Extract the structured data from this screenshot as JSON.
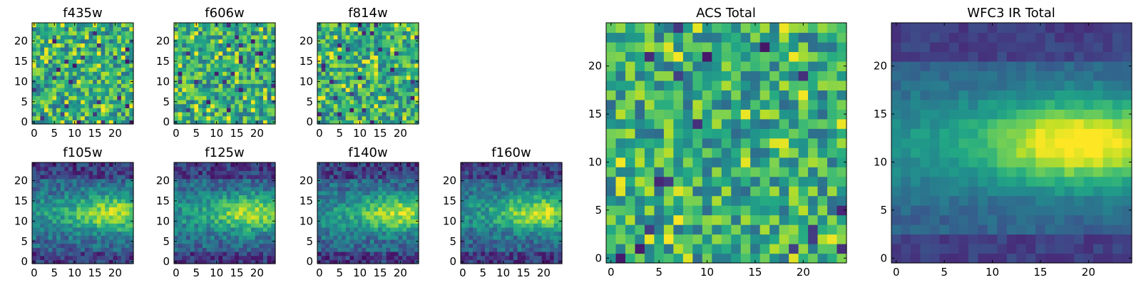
{
  "chart_data": [
    {
      "type": "heatmap",
      "id": "f435w",
      "title": "f435w",
      "colormap": "viridis",
      "grid_size": [
        25,
        25
      ],
      "texture": "noise",
      "seed": 11,
      "x_ticks": [
        0,
        5,
        10,
        15,
        20
      ],
      "y_ticks": [
        0,
        5,
        10,
        15,
        20
      ],
      "x_tick_labels": [
        "0",
        "5",
        "10",
        "15",
        "20"
      ],
      "y_tick_labels": [
        "0",
        "5",
        "10",
        "15",
        "20"
      ],
      "xlim": [
        -0.5,
        24.5
      ],
      "ylim": [
        -0.5,
        24.5
      ],
      "value_range": [
        0,
        1
      ]
    },
    {
      "type": "heatmap",
      "id": "f606w",
      "title": "f606w",
      "colormap": "viridis",
      "grid_size": [
        25,
        25
      ],
      "texture": "noise",
      "seed": 23,
      "x_ticks": [
        0,
        5,
        10,
        15,
        20
      ],
      "y_ticks": [
        0,
        5,
        10,
        15,
        20
      ],
      "x_tick_labels": [
        "0",
        "5",
        "10",
        "15",
        "20"
      ],
      "y_tick_labels": [
        "0",
        "5",
        "10",
        "15",
        "20"
      ],
      "xlim": [
        -0.5,
        24.5
      ],
      "ylim": [
        -0.5,
        24.5
      ],
      "value_range": [
        0,
        1
      ]
    },
    {
      "type": "heatmap",
      "id": "f814w",
      "title": "f814w",
      "colormap": "viridis",
      "grid_size": [
        25,
        25
      ],
      "texture": "noise",
      "seed": 37,
      "x_ticks": [
        0,
        5,
        10,
        15,
        20
      ],
      "y_ticks": [
        0,
        5,
        10,
        15,
        20
      ],
      "x_tick_labels": [
        "0",
        "5",
        "10",
        "15",
        "20"
      ],
      "y_tick_labels": [
        "0",
        "5",
        "10",
        "15",
        "20"
      ],
      "xlim": [
        -0.5,
        24.5
      ],
      "ylim": [
        -0.5,
        24.5
      ],
      "value_range": [
        0,
        1
      ]
    },
    {
      "type": "heatmap",
      "id": "f105w",
      "title": "f105w",
      "colormap": "viridis",
      "grid_size": [
        25,
        25
      ],
      "texture": "smooth",
      "seed": 41,
      "x_ticks": [
        0,
        5,
        10,
        15,
        20
      ],
      "y_ticks": [
        0,
        5,
        10,
        15,
        20
      ],
      "x_tick_labels": [
        "0",
        "5",
        "10",
        "15",
        "20"
      ],
      "y_tick_labels": [
        "0",
        "5",
        "10",
        "15",
        "20"
      ],
      "xlim": [
        -0.5,
        24.5
      ],
      "ylim": [
        -0.5,
        24.5
      ],
      "value_range": [
        0,
        1
      ]
    },
    {
      "type": "heatmap",
      "id": "f125w",
      "title": "f125w",
      "colormap": "viridis",
      "grid_size": [
        25,
        25
      ],
      "texture": "smooth",
      "seed": 53,
      "x_ticks": [
        0,
        5,
        10,
        15,
        20
      ],
      "y_ticks": [
        0,
        5,
        10,
        15,
        20
      ],
      "x_tick_labels": [
        "0",
        "5",
        "10",
        "15",
        "20"
      ],
      "y_tick_labels": [
        "0",
        "5",
        "10",
        "15",
        "20"
      ],
      "xlim": [
        -0.5,
        24.5
      ],
      "ylim": [
        -0.5,
        24.5
      ],
      "value_range": [
        0,
        1
      ]
    },
    {
      "type": "heatmap",
      "id": "f140w",
      "title": "f140w",
      "colormap": "viridis",
      "grid_size": [
        25,
        25
      ],
      "texture": "smooth",
      "seed": 67,
      "x_ticks": [
        0,
        5,
        10,
        15,
        20
      ],
      "y_ticks": [
        0,
        5,
        10,
        15,
        20
      ],
      "x_tick_labels": [
        "0",
        "5",
        "10",
        "15",
        "20"
      ],
      "y_tick_labels": [
        "0",
        "5",
        "10",
        "15",
        "20"
      ],
      "xlim": [
        -0.5,
        24.5
      ],
      "ylim": [
        -0.5,
        24.5
      ],
      "value_range": [
        0,
        1
      ]
    },
    {
      "type": "heatmap",
      "id": "f160w",
      "title": "f160w",
      "colormap": "viridis",
      "grid_size": [
        25,
        25
      ],
      "texture": "smooth",
      "seed": 79,
      "x_ticks": [
        0,
        5,
        10,
        15,
        20
      ],
      "y_ticks": [
        0,
        5,
        10,
        15,
        20
      ],
      "x_tick_labels": [
        "0",
        "5",
        "10",
        "15",
        "20"
      ],
      "y_tick_labels": [
        "0",
        "5",
        "10",
        "15",
        "20"
      ],
      "xlim": [
        -0.5,
        24.5
      ],
      "ylim": [
        -0.5,
        24.5
      ],
      "value_range": [
        0,
        1
      ]
    },
    {
      "type": "heatmap",
      "id": "acs-total",
      "title": "ACS Total",
      "colormap": "viridis",
      "grid_size": [
        25,
        25
      ],
      "texture": "noise",
      "seed": 97,
      "x_ticks": [
        0,
        5,
        10,
        15,
        20
      ],
      "y_ticks": [
        0,
        5,
        10,
        15,
        20
      ],
      "x_tick_labels": [
        "0",
        "5",
        "10",
        "15",
        "20"
      ],
      "y_tick_labels": [
        "0",
        "5",
        "10",
        "15",
        "20"
      ],
      "xlim": [
        -0.5,
        24.5
      ],
      "ylim": [
        -0.5,
        24.5
      ],
      "value_range": [
        0,
        1
      ]
    },
    {
      "type": "heatmap",
      "id": "wfc3-ir-total",
      "title": "WFC3 IR Total",
      "colormap": "viridis",
      "grid_size": [
        25,
        25
      ],
      "texture": "smooth-strong",
      "seed": 113,
      "x_ticks": [
        0,
        5,
        10,
        15,
        20
      ],
      "y_ticks": [
        0,
        5,
        10,
        15,
        20
      ],
      "x_tick_labels": [
        "0",
        "5",
        "10",
        "15",
        "20"
      ],
      "y_tick_labels": [
        "0",
        "5",
        "10",
        "15",
        "20"
      ],
      "xlim": [
        -0.5,
        24.5
      ],
      "ylim": [
        -0.5,
        24.5
      ],
      "value_range": [
        0,
        1
      ]
    }
  ]
}
